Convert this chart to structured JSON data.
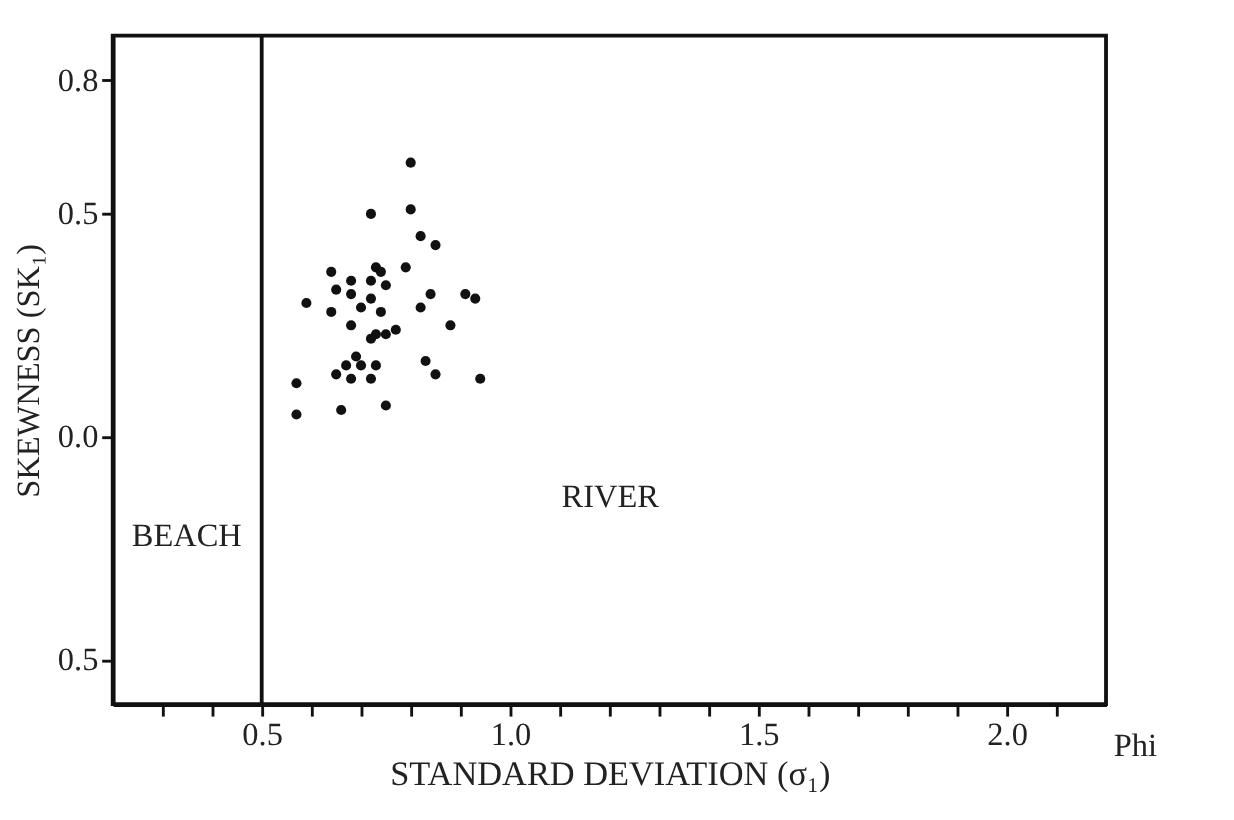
{
  "chart_data": {
    "type": "scatter",
    "xlabel": "STANDARD DEVIATION (σ₁)",
    "ylabel": "SKEWNESS (SK₁)",
    "x": [
      0.8,
      0.72,
      0.8,
      0.82,
      0.85,
      0.79,
      0.73,
      0.74,
      0.64,
      0.68,
      0.72,
      0.65,
      0.75,
      0.68,
      0.72,
      0.84,
      0.91,
      0.93,
      0.59,
      0.64,
      0.7,
      0.82,
      0.74,
      0.68,
      0.88,
      0.77,
      0.75,
      0.73,
      0.72,
      0.69,
      0.67,
      0.7,
      0.73,
      0.65,
      0.68,
      0.72,
      0.83,
      0.85,
      0.94,
      0.57,
      0.57,
      0.66,
      0.75
    ],
    "series": [
      {
        "color": "#111111",
        "values": [
          0.615,
          0.5,
          0.51,
          0.45,
          0.43,
          0.38,
          0.38,
          0.37,
          0.37,
          0.35,
          0.35,
          0.33,
          0.34,
          0.32,
          0.31,
          0.32,
          0.32,
          0.31,
          0.3,
          0.28,
          0.29,
          0.29,
          0.28,
          0.25,
          0.25,
          0.24,
          0.23,
          0.23,
          0.22,
          0.18,
          0.16,
          0.16,
          0.16,
          0.14,
          0.13,
          0.13,
          0.17,
          0.14,
          0.13,
          0.12,
          0.05,
          0.06,
          0.07
        ]
      }
    ],
    "marker": "circle",
    "xlim": [
      0.2,
      2.2
    ],
    "xticks": [
      {
        "value": 0.3,
        "label": null
      },
      {
        "value": 0.4,
        "label": null
      },
      0.5,
      {
        "value": 0.6,
        "label": null
      },
      {
        "value": 0.7,
        "label": null
      },
      {
        "value": 0.8,
        "label": null
      },
      {
        "value": 0.9,
        "label": null
      },
      {
        "value": 1.0,
        "label": "1.0"
      },
      {
        "value": 1.1,
        "label": null
      },
      {
        "value": 1.2,
        "label": null
      },
      {
        "value": 1.3,
        "label": null
      },
      {
        "value": 1.4,
        "label": null
      },
      1.5,
      {
        "value": 1.6,
        "label": null
      },
      {
        "value": 1.7,
        "label": null
      },
      {
        "value": 1.8,
        "label": null
      },
      {
        "value": 1.9,
        "label": null
      },
      {
        "value": 2.0,
        "label": "2.0"
      },
      {
        "value": 2.1,
        "label": null
      }
    ],
    "ylim": [
      -0.6,
      0.9
    ],
    "yticks": [
      {
        "value": -0.5,
        "label": "0.5"
      },
      {
        "value": 0.0,
        "label": "0.0"
      },
      0.5,
      0.8
    ],
    "ref_lines": [
      {
        "axis": "x",
        "value": 0.5,
        "color": "#111111",
        "line_style": "solid"
      }
    ],
    "annotations": [
      "BEACH",
      "RIVER",
      "Phi"
    ],
    "grid": false
  }
}
